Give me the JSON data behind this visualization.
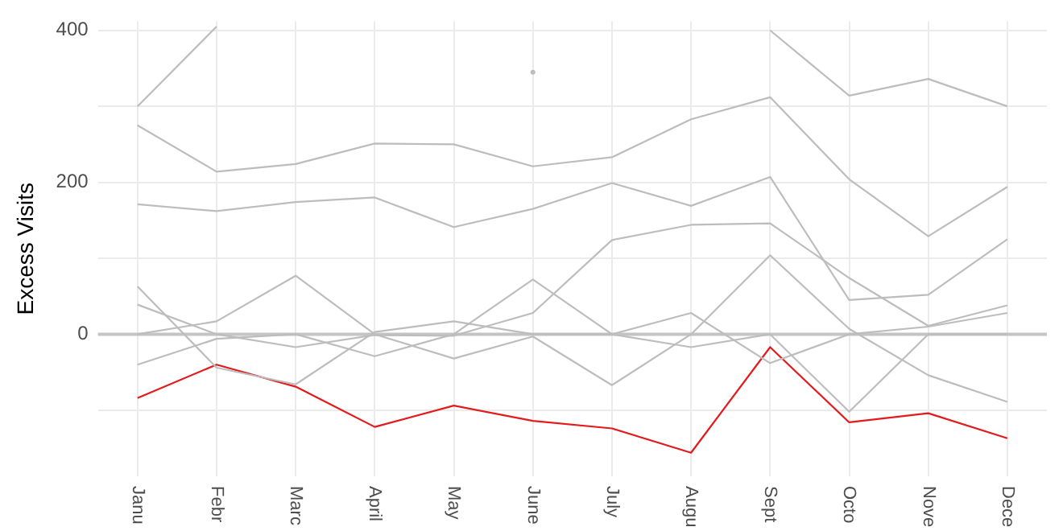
{
  "chart_data": {
    "type": "line",
    "ylabel": "Excess Visits",
    "categories": [
      "Janu",
      "Febr",
      "Marc",
      "April",
      "May",
      "June",
      "July",
      "Augu",
      "Sept",
      "Octo",
      "Nove",
      "Dece"
    ],
    "series": [
      {
        "color": "#bdbdbd",
        "values": [
          300,
          405,
          null,
          null,
          null,
          345,
          null,
          null,
          400,
          314,
          336,
          300
        ]
      },
      {
        "color": "#bdbdbd",
        "values": [
          275,
          214,
          224,
          251,
          250,
          221,
          233,
          283,
          312,
          204,
          129,
          194
        ]
      },
      {
        "color": "#bdbdbd",
        "values": [
          171,
          162,
          174,
          180,
          141,
          165,
          199,
          169,
          207,
          45,
          52,
          125
        ]
      },
      {
        "color": "#bdbdbd",
        "values": [
          63,
          -44,
          -66,
          3,
          17,
          0,
          0,
          -17,
          0,
          -102,
          0,
          0
        ]
      },
      {
        "color": "#bdbdbd",
        "values": [
          39,
          0,
          -17,
          -1,
          -2,
          28,
          124,
          144,
          146,
          74,
          11,
          38
        ]
      },
      {
        "color": "#bdbdbd",
        "values": [
          0,
          17,
          77,
          0,
          -32,
          -3,
          -67,
          0,
          104,
          7,
          -54,
          -89
        ]
      },
      {
        "color": "#bdbdbd",
        "values": [
          -40,
          -6,
          0,
          -29,
          0,
          72,
          0,
          28,
          -38,
          0,
          10,
          28
        ]
      },
      {
        "color": "#e41a1c",
        "values": [
          -84,
          -40,
          -69,
          -122,
          -94,
          -114,
          -124,
          -156,
          -17,
          -116,
          -104,
          -137
        ]
      }
    ],
    "ylim": [
      -187,
      412
    ],
    "yticks": [
      {
        "value": -100,
        "label": null
      },
      0,
      {
        "value": 100,
        "label": null
      },
      200,
      {
        "value": 300,
        "label": null
      },
      400
    ],
    "ref_lines": [
      {
        "axis": "y",
        "value": 0,
        "color": "#c4c4c4"
      }
    ],
    "grid": true,
    "marker": "none",
    "line_style": "solid"
  }
}
